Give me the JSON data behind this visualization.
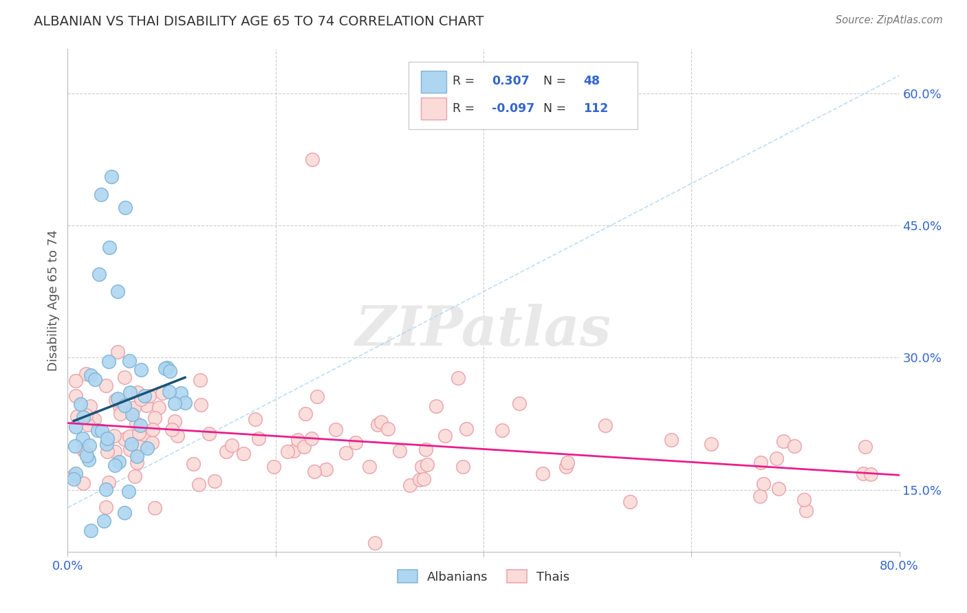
{
  "title": "ALBANIAN VS THAI DISABILITY AGE 65 TO 74 CORRELATION CHART",
  "source": "Source: ZipAtlas.com",
  "ylabel": "Disability Age 65 to 74",
  "xlim": [
    0.0,
    0.8
  ],
  "ylim": [
    0.08,
    0.65
  ],
  "albanian_face": "#AED6F1",
  "albanian_edge": "#7FB3D3",
  "thai_face": "#FADBD8",
  "thai_edge": "#E8A0AA",
  "trend_blue": "#1A5276",
  "trend_pink": "#E91E8C",
  "dash_color": "#AED6F1",
  "r_albanian": "0.307",
  "n_albanian": "48",
  "r_thai": "-0.097",
  "n_thai": "112",
  "grid_color": "#CCCCCC",
  "background_color": "#FFFFFF",
  "watermark_color": "#E8E8E8",
  "label_color": "#3366CC",
  "title_color": "#333333",
  "source_color": "#777777",
  "ylabel_color": "#555555"
}
